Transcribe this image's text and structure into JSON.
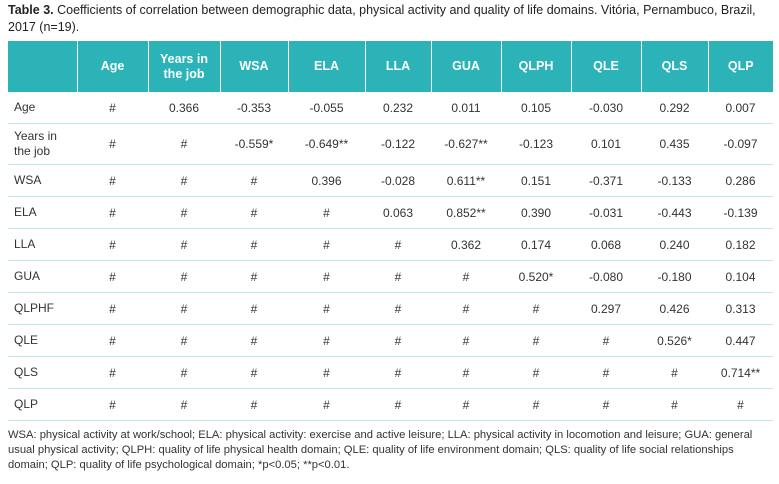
{
  "caption": {
    "label": "Table 3.",
    "text": "Coefficients of correlation between demographic data, physical activity and quality of life domains. Vitória, Pernambuco, Brazil, 2017 (n=19)."
  },
  "table": {
    "headers": [
      "",
      "Age",
      "Years in the job",
      "WSA",
      "ELA",
      "LLA",
      "GUA",
      "QLPH",
      "QLE",
      "QLS",
      "QLP"
    ],
    "rows": [
      [
        "Age",
        "#",
        "0.366",
        "-0.353",
        "-0.055",
        "0.232",
        "0.011",
        "0.105",
        "-0.030",
        "0.292",
        "0.007"
      ],
      [
        "Years in the job",
        "#",
        "#",
        "-0.559*",
        "-0.649**",
        "-0.122",
        "-0.627**",
        "-0.123",
        "0.101",
        "0.435",
        "-0.097"
      ],
      [
        "WSA",
        "#",
        "#",
        "#",
        "0.396",
        "-0.028",
        "0.611**",
        "0.151",
        "-0.371",
        "-0.133",
        "0.286"
      ],
      [
        "ELA",
        "#",
        "#",
        "#",
        "#",
        "0.063",
        "0.852**",
        "0.390",
        "-0.031",
        "-0.443",
        "-0.139"
      ],
      [
        "LLA",
        "#",
        "#",
        "#",
        "#",
        "#",
        "0.362",
        "0.174",
        "0.068",
        "0.240",
        "0.182"
      ],
      [
        "GUA",
        "#",
        "#",
        "#",
        "#",
        "#",
        "#",
        "0.520*",
        "-0.080",
        "-0.180",
        "0.104"
      ],
      [
        "QLPHF",
        "#",
        "#",
        "#",
        "#",
        "#",
        "#",
        "#",
        "0.297",
        "0.426",
        "0.313"
      ],
      [
        "QLE",
        "#",
        "#",
        "#",
        "#",
        "#",
        "#",
        "#",
        "#",
        "0.526*",
        "0.447"
      ],
      [
        "QLS",
        "#",
        "#",
        "#",
        "#",
        "#",
        "#",
        "#",
        "#",
        "#",
        "0.714**"
      ],
      [
        "QLP",
        "#",
        "#",
        "#",
        "#",
        "#",
        "#",
        "#",
        "#",
        "#",
        "#"
      ]
    ]
  },
  "footnote": "WSA: physical activity at work/school; ELA: physical activity: exercise and active leisure; LLA: physical activity in locomotion and leisure; GUA: general usual physical activity; QLPH: quality of life physical health domain; QLE: quality of life environment domain; QLS: quality of life social relationships domain; QLP: quality of life psychological domain; *p<0.05; **p<0.01.",
  "colors": {
    "header_bg": "#2bb3b8",
    "row_rule": "#bfe6e7"
  }
}
